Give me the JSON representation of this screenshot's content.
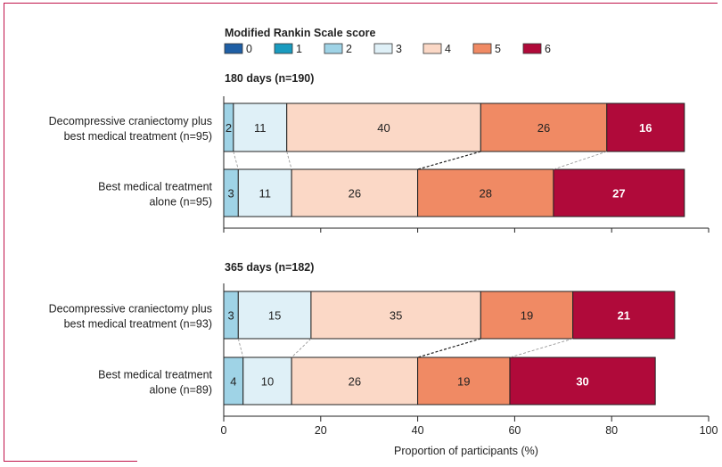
{
  "chart_data": {
    "type": "bar",
    "stacked": true,
    "orientation": "horizontal",
    "legend_title": "Modified Rankin Scale score",
    "legend_position": "top",
    "legend": [
      {
        "name": "0",
        "color": "#1f5fa5"
      },
      {
        "name": "1",
        "color": "#1a9bbf"
      },
      {
        "name": "2",
        "color": "#9fd3e6"
      },
      {
        "name": "3",
        "color": "#dff0f7"
      },
      {
        "name": "4",
        "color": "#fbd8c6"
      },
      {
        "name": "5",
        "color": "#f08a64"
      },
      {
        "name": "6",
        "color": "#b00a3a"
      }
    ],
    "xlabel": "Proportion of participants (%)",
    "xlim": [
      0,
      100
    ],
    "xticks": [
      0,
      20,
      40,
      60,
      80,
      100
    ],
    "panels": [
      {
        "title": "180 days (n=190)",
        "rows": [
          {
            "label_line1": "Decompressive craniectomy plus",
            "label_line2": "best medical treatment (n=95)",
            "values": [
              0,
              0,
              2,
              11,
              40,
              26,
              16
            ],
            "labels": [
              "",
              "",
              "2",
              "11",
              "40",
              "26",
              "16"
            ]
          },
          {
            "label_line1": "Best medical treatment",
            "label_line2": "alone (n=95)",
            "values": [
              0,
              0,
              3,
              11,
              26,
              28,
              27
            ],
            "labels": [
              "",
              "",
              "3",
              "11",
              "26",
              "28",
              "27"
            ]
          }
        ]
      },
      {
        "title": "365 days (n=182)",
        "rows": [
          {
            "label_line1": "Decompressive craniectomy plus",
            "label_line2": "best medical treatment (n=93)",
            "values": [
              0,
              0,
              3,
              15,
              35,
              19,
              21
            ],
            "labels": [
              "",
              "",
              "3",
              "15",
              "35",
              "19",
              "21"
            ]
          },
          {
            "label_line1": "Best medical treatment",
            "label_line2": "alone (n=89)",
            "values": [
              0,
              0,
              4,
              10,
              26,
              19,
              30
            ],
            "labels": [
              "",
              "",
              "4",
              "10",
              "26",
              "19",
              "30"
            ]
          }
        ]
      }
    ]
  }
}
